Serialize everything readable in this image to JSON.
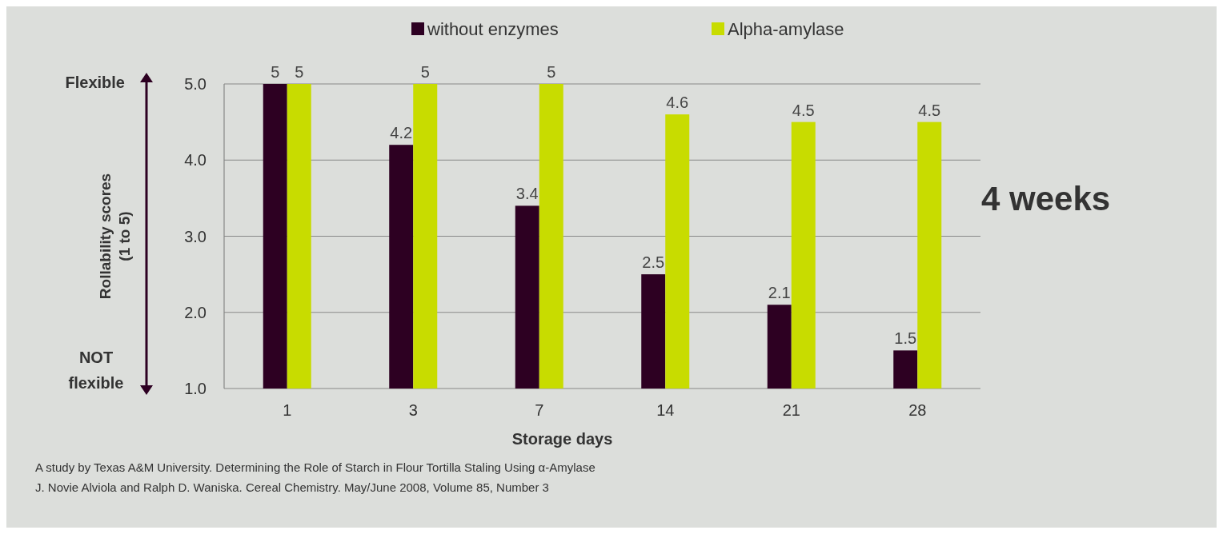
{
  "chart_data": {
    "type": "bar",
    "categories": [
      "1",
      "3",
      "7",
      "14",
      "21",
      "28"
    ],
    "series": [
      {
        "name": "without enzymes",
        "color": "#2d0022",
        "values": [
          5,
          4.2,
          3.4,
          2.5,
          2.1,
          1.5
        ]
      },
      {
        "name": "Alpha-amylase",
        "color": "#c8dc00",
        "values": [
          5,
          5,
          5,
          4.6,
          4.5,
          4.5
        ]
      }
    ],
    "xlabel": "Storage days",
    "ylabel": "Rollability scores\n(1 to 5)",
    "ylim": [
      1,
      5
    ],
    "yticks": [
      {
        "value": 1,
        "label": "1.0"
      },
      {
        "value": 2,
        "label": "2.0"
      },
      {
        "value": 3,
        "label": "3.0"
      },
      {
        "value": 4,
        "label": "4.0"
      },
      {
        "value": 5,
        "label": "5.0"
      }
    ],
    "grid": "y",
    "legend": "top",
    "data_labels": true,
    "annotations": [
      "Flexible",
      "NOT flexible",
      "4 weeks",
      "A study by Texas A&M University. Determining the Role of Starch in Flour Tortilla Staling Using α-Amylase",
      "J. Novie Alviola and Ralph D. Waniska. Cereal Chemistry. May/June 2008, Volume 85, Number 3"
    ]
  }
}
